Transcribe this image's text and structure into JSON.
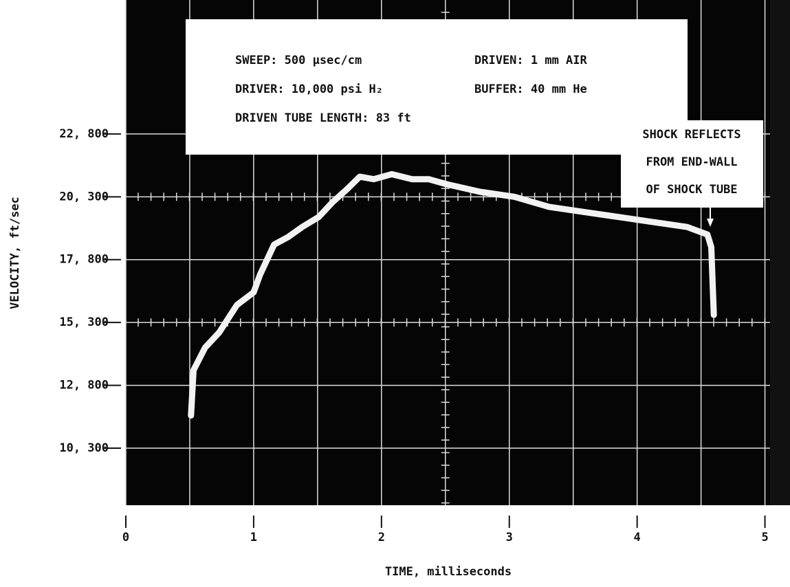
{
  "chart_data": {
    "type": "line",
    "x_label": "TIME, milliseconds",
    "y_label": "VELOCITY, ft/sec",
    "xlim": [
      0,
      5.04
    ],
    "ylim": [
      8030,
      28130
    ],
    "xticks": [
      0,
      1,
      2,
      3,
      4,
      5
    ],
    "yticks": [
      {
        "value": 10300,
        "label": "10, 300"
      },
      {
        "value": 12800,
        "label": "12, 800"
      },
      {
        "value": 15300,
        "label": "15, 300"
      },
      {
        "value": 17800,
        "label": "17, 800"
      },
      {
        "value": 20300,
        "label": "20, 300"
      },
      {
        "value": 22800,
        "label": "22, 800"
      }
    ],
    "grid": true,
    "series": [
      {
        "color": "#f2f2f2",
        "x": [
          0.51,
          0.53,
          0.62,
          0.73,
          0.87,
          1.0,
          1.05,
          1.16,
          1.27,
          1.38,
          1.51,
          1.62,
          1.73,
          1.83,
          1.94,
          2.08,
          2.24,
          2.37,
          2.51,
          2.77,
          3.04,
          3.31,
          3.58,
          3.85,
          4.12,
          4.39,
          4.55,
          4.58,
          4.6
        ],
        "values": [
          11600,
          13400,
          14300,
          14900,
          16000,
          16500,
          17200,
          18400,
          18700,
          19100,
          19500,
          20100,
          20600,
          21100,
          21000,
          21200,
          21000,
          21000,
          20800,
          20500,
          20300,
          19900,
          19700,
          19500,
          19300,
          19100,
          18800,
          18300,
          15600
        ]
      }
    ],
    "annotations": {
      "settings": [
        "SWEEP:  500 μsec/cm",
        "DRIVEN:  1 mm AIR",
        "DRIVER:  10,000 psi H₂",
        "BUFFER: 40 mm He",
        "DRIVEN TUBE LENGTH:  83 ft"
      ],
      "event": [
        "SHOCK REFLECTS",
        "FROM END-WALL",
        "OF SHOCK TUBE"
      ]
    }
  }
}
